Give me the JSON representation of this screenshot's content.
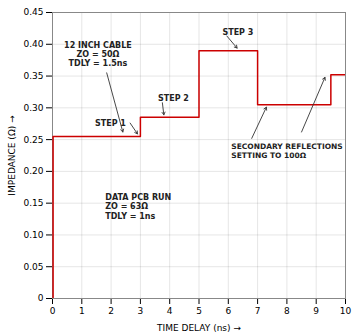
{
  "chart_data": {
    "type": "line",
    "xlabel": "TIME DELAY (ns)",
    "ylabel": "IMPEDANCE (Ω)",
    "x": [
      0,
      0.02,
      0.02,
      3,
      3,
      5,
      5,
      7,
      7,
      9.5,
      9.5,
      10
    ],
    "values": [
      0,
      0,
      0.255,
      0.255,
      0.285,
      0.285,
      0.39,
      0.39,
      0.305,
      0.305,
      0.352,
      0.352
    ],
    "color": "#cc0000",
    "xlim": [
      0,
      10
    ],
    "ylim": [
      0,
      0.45
    ],
    "xticks": [
      0,
      1,
      2,
      3,
      4,
      5,
      6,
      7,
      8,
      9,
      10
    ],
    "yticks": [
      0,
      0.05,
      {
        "value": 0.1,
        "label": "0.10"
      },
      0.15,
      {
        "value": 0.2,
        "label": "0.20"
      },
      0.25,
      {
        "value": 0.3,
        "label": "0.30"
      },
      0.35,
      {
        "value": 0.4,
        "label": "0.40"
      },
      0.45
    ],
    "grid": true,
    "annotations": [
      "12 INCH CABLE\nZO = 50Ω\nTDLY = 1.5ns",
      "STEP 1",
      "STEP 2",
      "STEP 3",
      "SECONDARY REFLECTIONS\nSETTING TO 100Ω",
      "DATA PCB RUN\nZO = 63Ω\nTDLY = 1ns"
    ]
  }
}
